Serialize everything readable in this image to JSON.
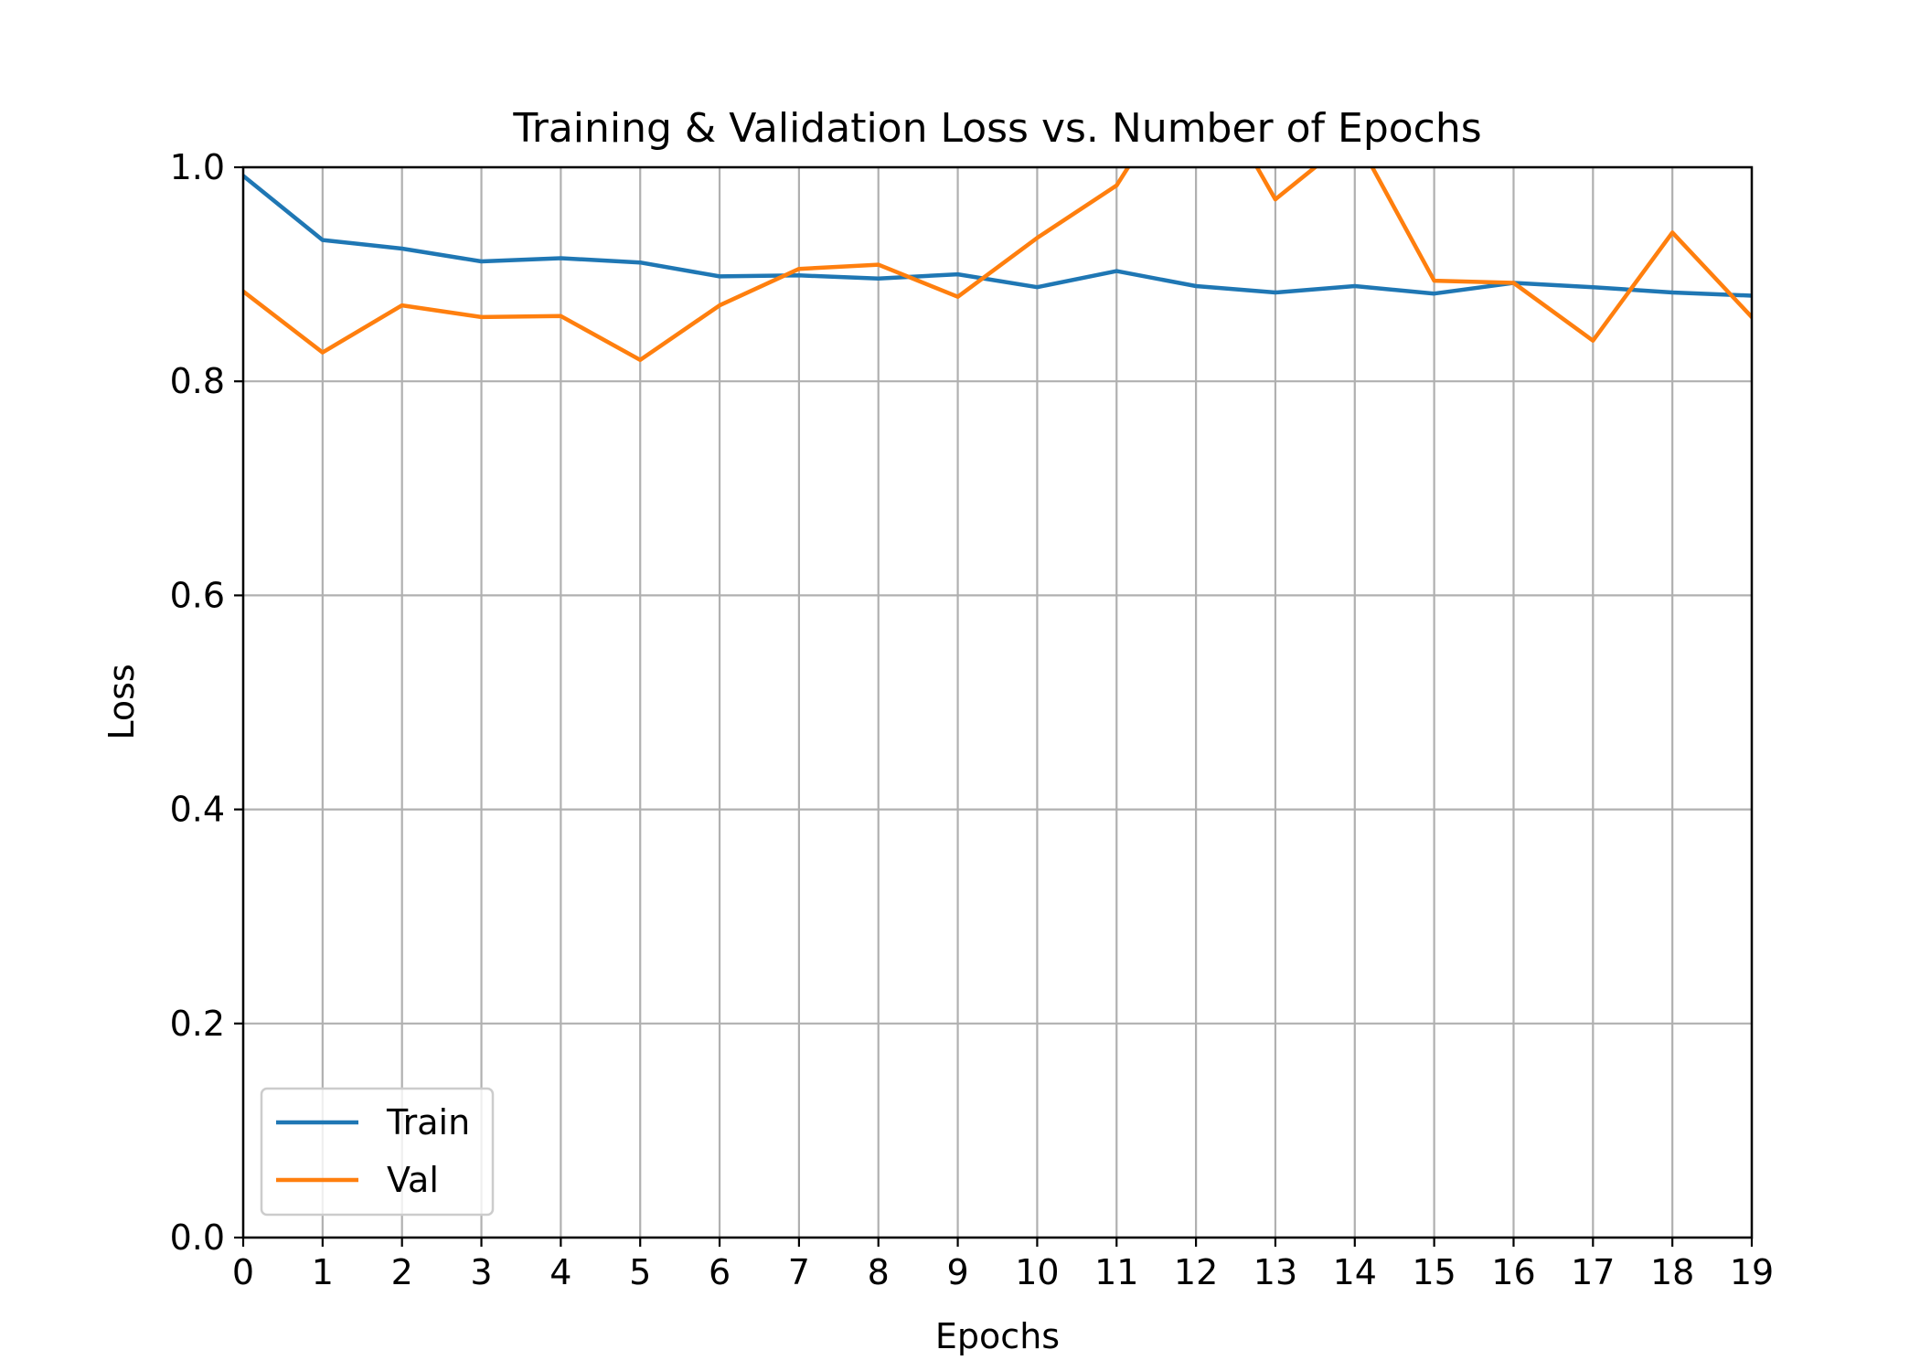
{
  "chart_data": {
    "type": "line",
    "title": "Training & Validation Loss vs. Number of Epochs",
    "xlabel": "Epochs",
    "ylabel": "Loss",
    "x": [
      0,
      1,
      2,
      3,
      4,
      5,
      6,
      7,
      8,
      9,
      10,
      11,
      12,
      13,
      14,
      15,
      16,
      17,
      18,
      19
    ],
    "xticks": [
      "0",
      "1",
      "2",
      "3",
      "4",
      "5",
      "6",
      "7",
      "8",
      "9",
      "10",
      "11",
      "12",
      "13",
      "14",
      "15",
      "16",
      "17",
      "18",
      "19"
    ],
    "yticks": [
      "0.0",
      "0.2",
      "0.4",
      "0.6",
      "0.8",
      "1.0"
    ],
    "ytick_values": [
      0.0,
      0.2,
      0.4,
      0.6,
      0.8,
      1.0
    ],
    "xlim": [
      0,
      19
    ],
    "ylim": [
      0.0,
      1.0
    ],
    "grid": true,
    "legend_position": "lower-left",
    "series": [
      {
        "name": "Train",
        "color": "#1f77b4",
        "values": [
          0.992,
          0.932,
          0.924,
          0.912,
          0.915,
          0.911,
          0.898,
          0.899,
          0.896,
          0.9,
          0.888,
          0.903,
          0.889,
          0.883,
          0.889,
          0.882,
          0.892,
          0.888,
          0.883,
          0.88
        ]
      },
      {
        "name": "Val",
        "color": "#ff7f0e",
        "values": [
          0.884,
          0.827,
          0.871,
          0.86,
          0.861,
          0.82,
          0.871,
          0.905,
          0.909,
          0.879,
          0.934,
          0.983,
          1.1,
          0.97,
          1.03,
          0.894,
          0.892,
          0.838,
          0.939,
          0.86
        ]
      }
    ]
  }
}
